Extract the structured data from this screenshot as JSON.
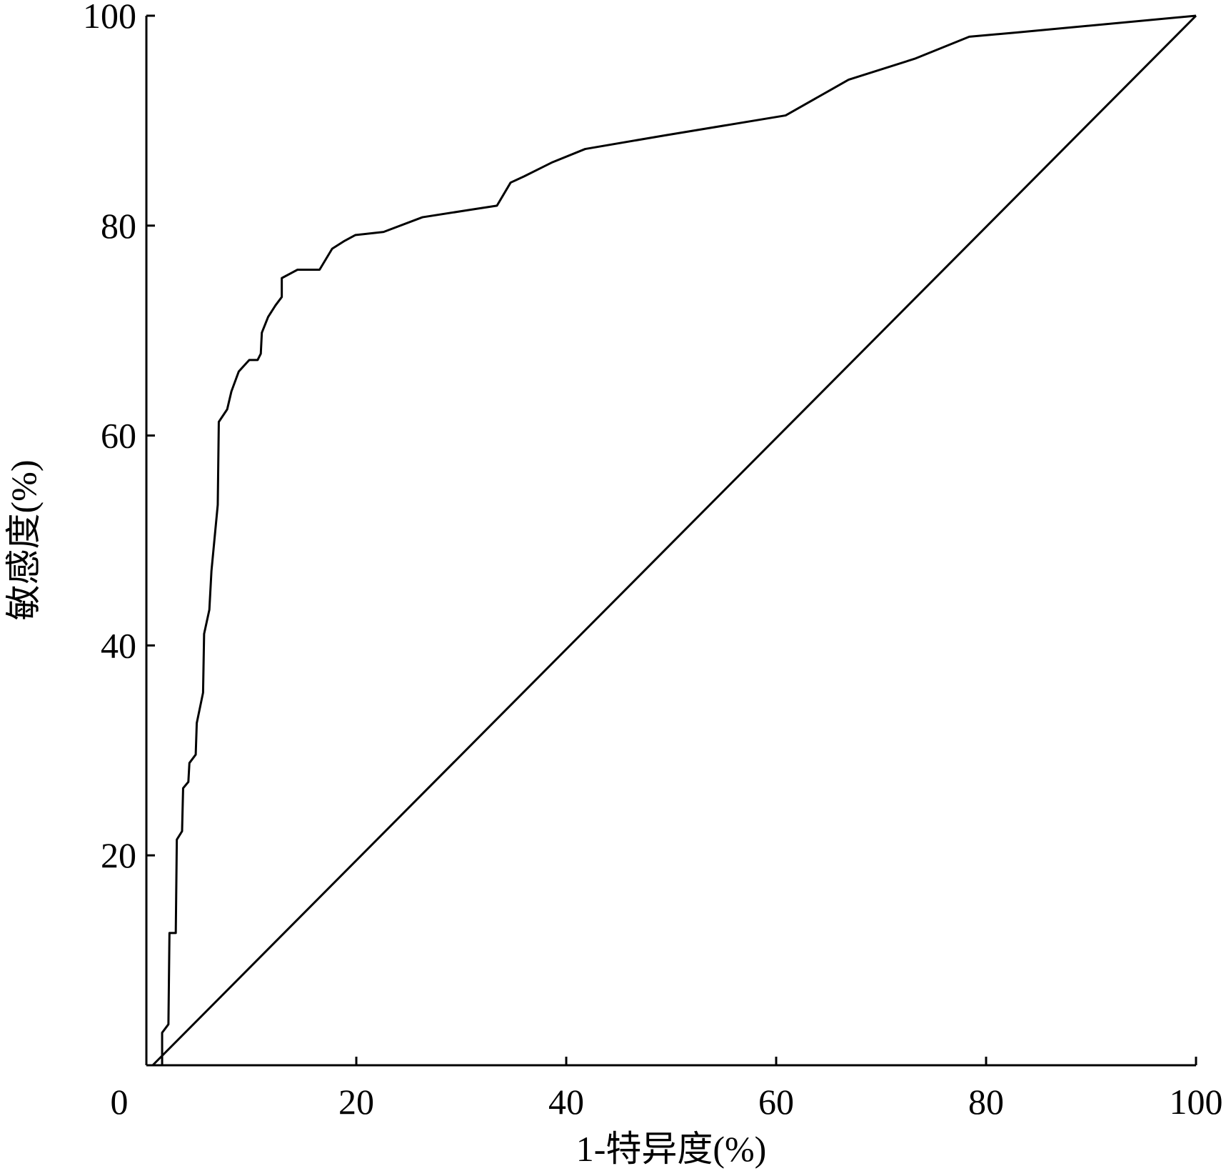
{
  "chart_data": {
    "type": "line",
    "xlabel": "1-特异度(%)",
    "ylabel": "敏感度(%)",
    "series": [
      {
        "color": "#000000",
        "x": [
          0,
          1.5,
          1.5,
          2.1,
          2.2,
          2.8,
          2.9,
          3.4,
          3.5,
          4.0,
          4.1,
          4.7,
          4.8,
          5.4,
          5.5,
          6.0,
          6.2,
          6.8,
          6.9,
          7.7,
          8.1,
          8.8,
          9.8,
          10.6,
          10.9,
          11.0,
          11.6,
          12.3,
          12.9,
          12.9,
          14.4,
          16.5,
          17.7,
          18.8,
          19.9,
          22.6,
          26.3,
          30.8,
          33.4,
          34.7,
          36.0,
          38.6,
          41.8,
          49.4,
          60.9,
          66.9,
          73.2,
          78.4,
          82.9,
          100
        ],
        "values": [
          0,
          0,
          3.1,
          3.9,
          12.6,
          12.6,
          21.5,
          22.3,
          26.4,
          27.0,
          28.8,
          29.6,
          32.6,
          35.5,
          41.1,
          43.4,
          47.1,
          53.4,
          61.3,
          62.5,
          64.2,
          66.1,
          67.2,
          67.2,
          67.8,
          69.8,
          71.3,
          72.4,
          73.2,
          75.0,
          75.8,
          75.8,
          77.8,
          78.5,
          79.1,
          79.4,
          80.8,
          81.5,
          81.9,
          84.1,
          84.7,
          86.0,
          87.3,
          88.6,
          90.5,
          93.9,
          95.9,
          98.0,
          98.4,
          100
        ]
      },
      {
        "color": "#000000",
        "x": [
          0.6,
          100
        ],
        "values": [
          0,
          100
        ]
      }
    ],
    "xlim": [
      0,
      100
    ],
    "ylim": [
      0,
      100
    ],
    "xticks": [
      0,
      20,
      40,
      60,
      80,
      100
    ],
    "yticks": [
      20,
      40,
      60,
      80,
      100
    ]
  }
}
